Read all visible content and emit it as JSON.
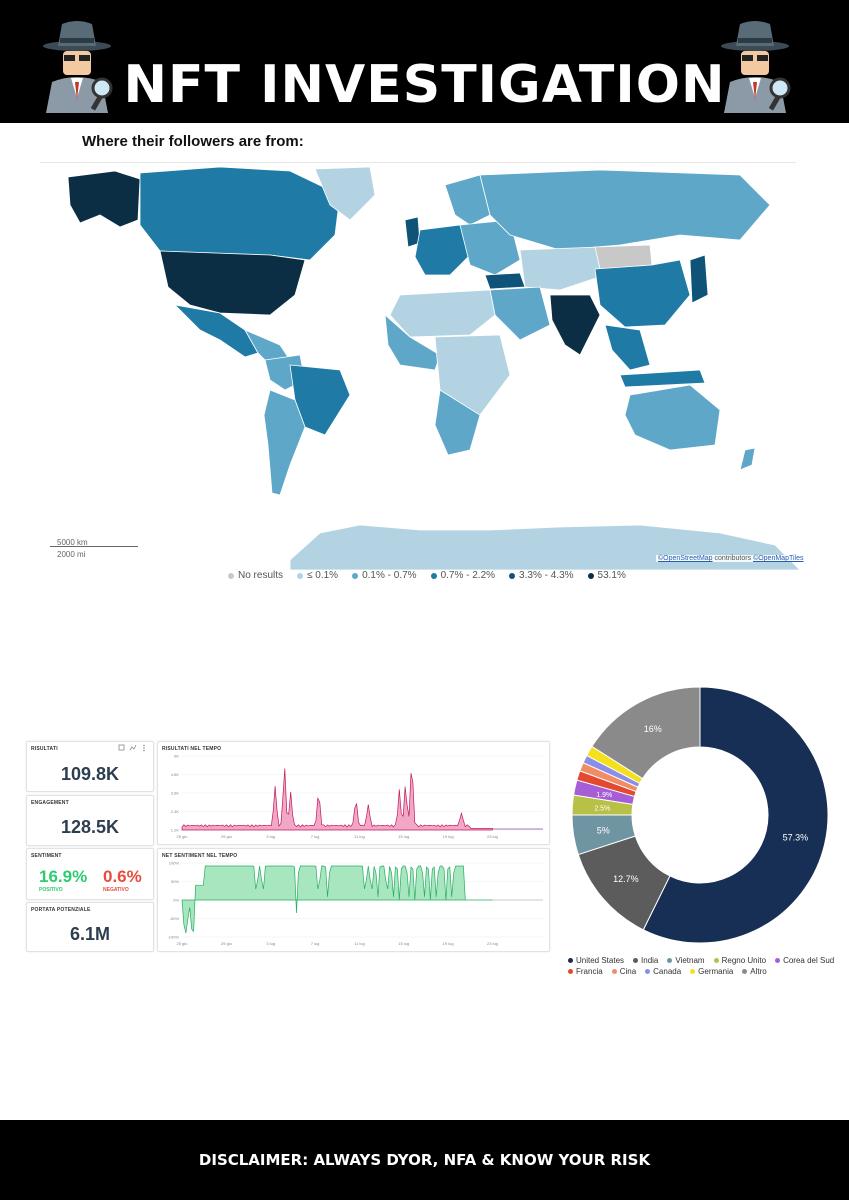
{
  "header": {
    "title": "NFT INVESTIGATION"
  },
  "section": {
    "title": "Where their followers are from:"
  },
  "map": {
    "scale_km": "5000 km",
    "scale_mi": "2000 mi",
    "attribution_osm": "©OpenStreetMap",
    "attribution_mid": "contributors",
    "attribution_tiles": "©OpenMapTiles",
    "legend": [
      {
        "label": "No results",
        "color": "#c8c8c8"
      },
      {
        "label": "≤ 0.1%",
        "color": "#b3d3e3"
      },
      {
        "label": "0.1% - 0.7%",
        "color": "#5ea7c9"
      },
      {
        "label": "0.7% - 2.2%",
        "color": "#1f7ba6"
      },
      {
        "label": "3.3% - 4.3%",
        "color": "#0f5478"
      },
      {
        "label": "53.1%",
        "color": "#0b2e44"
      }
    ]
  },
  "dashboard": {
    "results": {
      "label": "RISULTATI",
      "value": "109.8K"
    },
    "engagement": {
      "label": "ENGAGEMENT",
      "value": "128.5K"
    },
    "sentiment": {
      "label": "SENTIMENT",
      "positive_value": "16.9%",
      "positive_label": "POSITIVO",
      "positive_color": "#2ecc71",
      "negative_value": "0.6%",
      "negative_label": "NEGATIVO",
      "negative_color": "#e74c3c"
    },
    "reach": {
      "label": "PORTATA POTENZIALE",
      "value": "6.1M"
    },
    "results_over_time": {
      "label": "RISULTATI NEL TEMPO",
      "y_ticks": [
        "6K",
        "4.8K",
        "3.6K",
        "2.4K",
        "1.2K"
      ],
      "x_ticks": [
        "25 giu",
        "29 giu",
        "3 lug",
        "7 lug",
        "11 lug",
        "15 lug",
        "19 lug",
        "23 lug"
      ],
      "color": "#c2185b"
    },
    "sentiment_over_time": {
      "label": "NET SENTIMENT NEL TEMPO",
      "y_ticks": [
        "100%",
        "50%",
        "0%",
        "-50%",
        "-100%"
      ],
      "x_ticks": [
        "25 giu",
        "29 giu",
        "3 lug",
        "7 lug",
        "11 lug",
        "15 lug",
        "19 lug",
        "23 lug"
      ],
      "color": "#27ae60"
    }
  },
  "chart_data": [
    {
      "type": "pie",
      "categories": [
        "United States",
        "India",
        "Vietnam",
        "Regno Unito",
        "Corea del Sud",
        "Francia",
        "Cina",
        "Canada",
        "Germania",
        "Altro"
      ],
      "values": [
        57.3,
        12.7,
        5,
        2.5,
        1.9,
        1.2,
        1.1,
        1.0,
        1.3,
        16
      ],
      "data_labels": [
        "57.3%",
        "12.7%",
        "5%",
        "2.5%",
        "1.9%",
        "",
        "",
        "",
        "",
        "16%"
      ],
      "colors": [
        "#172f55",
        "#5c5c5c",
        "#6f95a3",
        "#b8c046",
        "#a55ed6",
        "#e2492f",
        "#f08c66",
        "#8b8ee6",
        "#f4e01b",
        "#8a8a8a"
      ],
      "legend": "bottom"
    },
    {
      "type": "area",
      "title": "RISULTATI NEL TEMPO",
      "x": [
        "25 giu",
        "29 giu",
        "3 lug",
        "7 lug",
        "11 lug",
        "15 lug",
        "19 lug",
        "23 lug"
      ],
      "ylim": [
        0,
        6000
      ]
    },
    {
      "type": "area",
      "title": "NET SENTIMENT NEL TEMPO",
      "x": [
        "25 giu",
        "29 giu",
        "3 lug",
        "7 lug",
        "11 lug",
        "15 lug",
        "19 lug",
        "23 lug"
      ],
      "ylim": [
        -100,
        100
      ]
    }
  ],
  "footer": {
    "text": "DISCLAIMER: ALWAYS DYOR, NFA & KNOW YOUR RISK"
  }
}
